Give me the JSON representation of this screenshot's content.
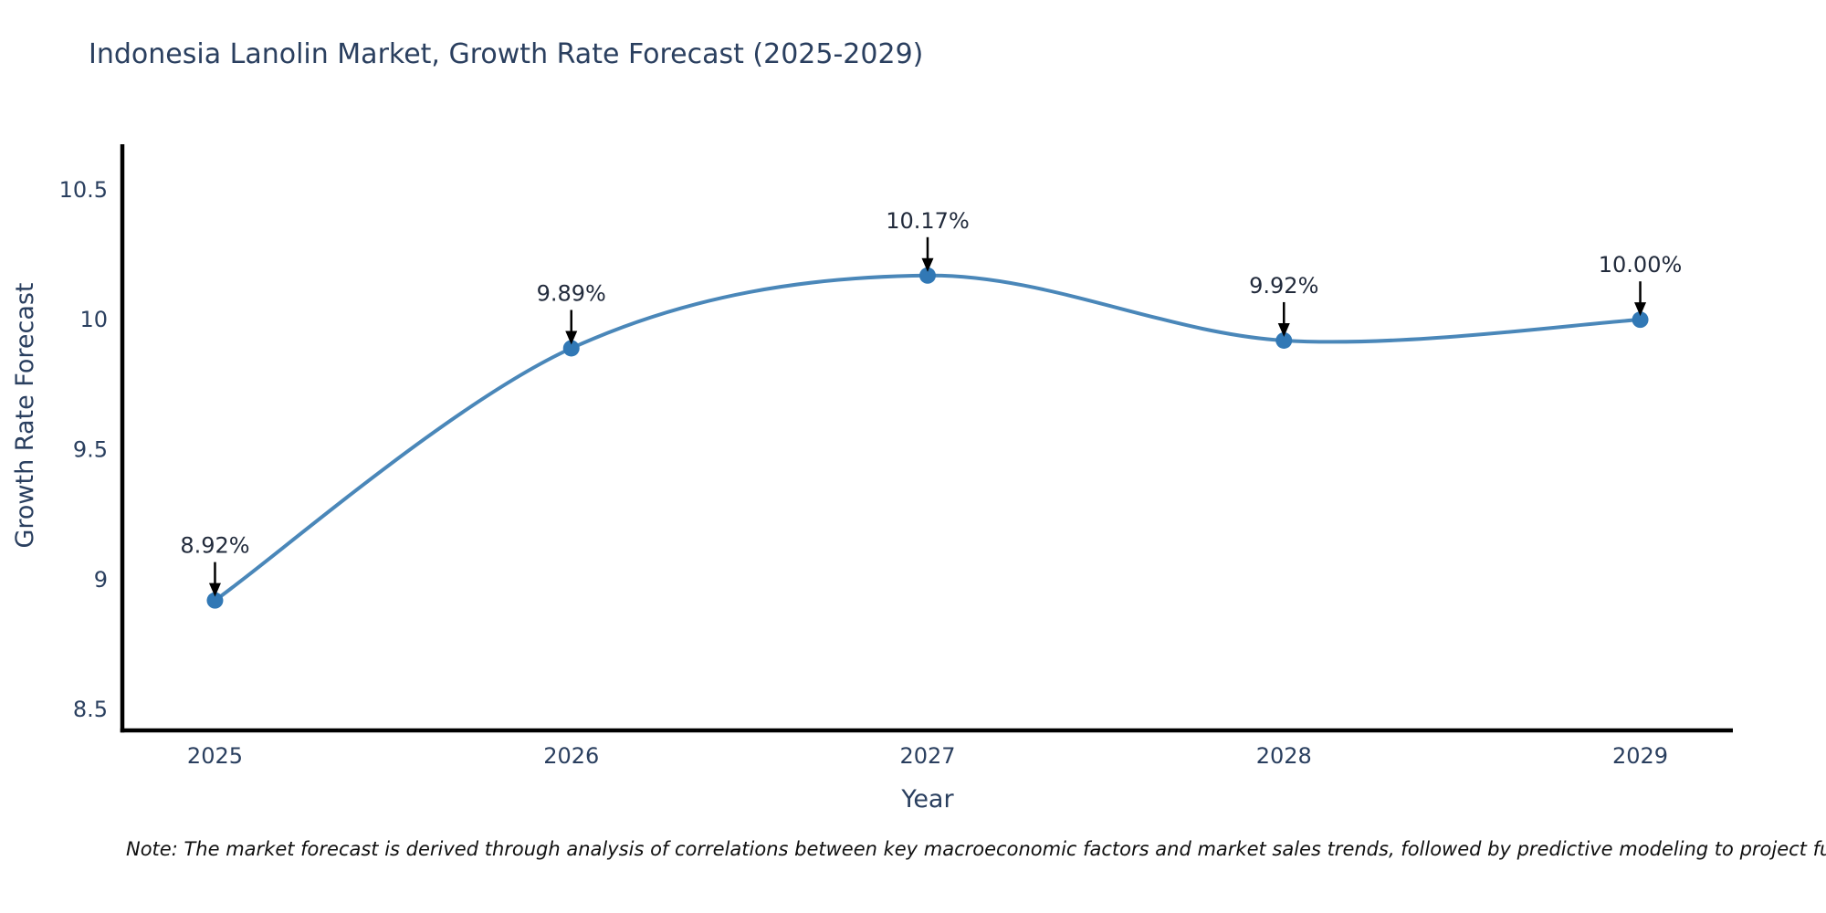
{
  "page": {
    "background_color": "#ffffff"
  },
  "chart_data": {
    "type": "line",
    "title": "Indonesia Lanolin Market, Growth Rate Forecast (2025-2029)",
    "xlabel": "Year",
    "ylabel": "Growth Rate Forecast",
    "categories": [
      "2025",
      "2026",
      "2027",
      "2028",
      "2029"
    ],
    "values": [
      8.92,
      9.89,
      10.17,
      9.92,
      10.0
    ],
    "point_labels": [
      "8.92%",
      "9.89%",
      "10.17%",
      "9.92%",
      "10.00%"
    ],
    "series_name": "Growth Rate Forecast",
    "line_shape": "spline",
    "markers": true,
    "grid": false,
    "legend": false,
    "y_tick_values": [
      8.5,
      9,
      9.5,
      10,
      10.5
    ],
    "y_tick_labels": [
      "8.5",
      "9",
      "9.5",
      "10",
      "10.5"
    ],
    "y_range": [
      8.42,
      10.675
    ],
    "x_range": [
      -0.26,
      4.26
    ],
    "colors": {
      "line": "#4a87b9",
      "marker": "#3178b5",
      "axis_line": "#000000",
      "axis_text": "#2a3f5f",
      "annotation_text": "#222b3c",
      "arrow": "#000000",
      "title_text": "#2a3f5f"
    }
  },
  "note": {
    "text": "Note: The market forecast is derived through analysis of correlations between key macroeconomic factors and market sales trends, followed by predictive modeling to project future sales"
  }
}
